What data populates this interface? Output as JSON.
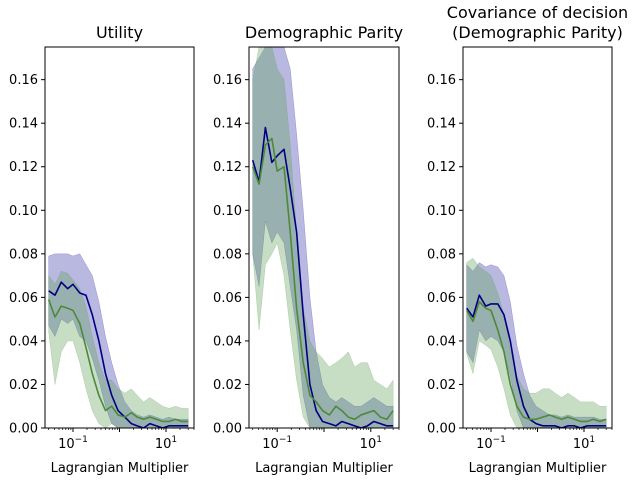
{
  "colors": {
    "series_blue": "#00007f",
    "band_blue": "#3535a8",
    "series_green": "#4c8a3a",
    "band_green": "#5fa055"
  },
  "chart_data": [
    {
      "type": "line",
      "title": "Utility",
      "xlabel": "Lagrangian Multiplier",
      "ylabel": "",
      "xscale": "log",
      "xlim": [
        0.025,
        40
      ],
      "ylim": [
        0,
        0.175
      ],
      "yticks": [
        "0.00",
        "0.02",
        "0.04",
        "0.06",
        "0.08",
        "0.10",
        "0.12",
        "0.14",
        "0.16"
      ],
      "xticks": [
        {
          "label": "10",
          "sup": "-1",
          "value": 0.1
        },
        {
          "label": "10",
          "sup": "1",
          "value": 10
        }
      ],
      "x": [
        0.03,
        0.041,
        0.056,
        0.077,
        0.1,
        0.14,
        0.19,
        0.26,
        0.36,
        0.5,
        0.68,
        0.93,
        1.3,
        1.8,
        2.4,
        3.3,
        4.5,
        6.2,
        8.5,
        11.6,
        16,
        22,
        30
      ],
      "series": [
        {
          "color": "#00007f",
          "band_color": "#3535a8",
          "values": [
            0.063,
            0.061,
            0.067,
            0.064,
            0.066,
            0.062,
            0.061,
            0.052,
            0.04,
            0.025,
            0.015,
            0.008,
            0.005,
            0.002,
            0.001,
            0.0,
            0.002,
            0.001,
            0.0,
            0.001,
            0.001,
            0.001,
            0.001
          ],
          "upper": [
            0.079,
            0.08,
            0.08,
            0.08,
            0.079,
            0.08,
            0.075,
            0.07,
            0.058,
            0.042,
            0.03,
            0.02,
            0.012,
            0.008,
            0.006,
            0.005,
            0.006,
            0.005,
            0.004,
            0.005,
            0.004,
            0.004,
            0.004
          ],
          "lower": [
            0.047,
            0.042,
            0.05,
            0.048,
            0.05,
            0.042,
            0.04,
            0.032,
            0.022,
            0.01,
            0.002,
            0.0,
            0.0,
            0.0,
            0.0,
            0.0,
            0.0,
            0.0,
            0.0,
            0.0,
            0.0,
            0.0,
            0.0
          ]
        },
        {
          "color": "#4c8a3a",
          "band_color": "#5fa055",
          "values": [
            0.059,
            0.051,
            0.056,
            0.055,
            0.054,
            0.048,
            0.037,
            0.025,
            0.015,
            0.008,
            0.01,
            0.006,
            0.005,
            0.007,
            0.005,
            0.004,
            0.005,
            0.004,
            0.003,
            0.003,
            0.004,
            0.003,
            0.003
          ],
          "upper": [
            0.07,
            0.066,
            0.072,
            0.071,
            0.068,
            0.064,
            0.056,
            0.042,
            0.03,
            0.022,
            0.022,
            0.018,
            0.016,
            0.018,
            0.015,
            0.012,
            0.014,
            0.012,
            0.01,
            0.009,
            0.01,
            0.009,
            0.009
          ],
          "lower": [
            0.044,
            0.02,
            0.035,
            0.04,
            0.04,
            0.03,
            0.018,
            0.008,
            0.002,
            0.0,
            0.002,
            0.0,
            0.0,
            0.0,
            0.0,
            0.0,
            0.0,
            0.0,
            0.0,
            0.0,
            0.0,
            0.0,
            0.0
          ]
        }
      ]
    },
    {
      "type": "line",
      "title": "Demographic Parity",
      "xlabel": "Lagrangian Multiplier",
      "ylabel": "",
      "xscale": "log",
      "xlim": [
        0.025,
        40
      ],
      "ylim": [
        0,
        0.175
      ],
      "yticks": [
        "0.00",
        "0.02",
        "0.04",
        "0.06",
        "0.08",
        "0.10",
        "0.12",
        "0.14",
        "0.16"
      ],
      "xticks": [
        {
          "label": "10",
          "sup": "-1",
          "value": 0.1
        },
        {
          "label": "10",
          "sup": "1",
          "value": 10
        }
      ],
      "x": [
        0.03,
        0.041,
        0.056,
        0.077,
        0.1,
        0.14,
        0.19,
        0.26,
        0.36,
        0.5,
        0.68,
        0.93,
        1.3,
        1.8,
        2.4,
        3.3,
        4.5,
        6.2,
        8.5,
        11.6,
        16,
        22,
        30
      ],
      "series": [
        {
          "color": "#00007f",
          "band_color": "#3535a8",
          "values": [
            0.123,
            0.113,
            0.138,
            0.122,
            0.125,
            0.128,
            0.11,
            0.09,
            0.052,
            0.02,
            0.008,
            0.003,
            0.002,
            0.001,
            0.003,
            0.002,
            0.001,
            0.0,
            0.001,
            0.003,
            0.002,
            0.001,
            0.001
          ],
          "upper": [
            0.165,
            0.17,
            0.175,
            0.175,
            0.175,
            0.175,
            0.165,
            0.135,
            0.1,
            0.06,
            0.035,
            0.02,
            0.014,
            0.012,
            0.014,
            0.012,
            0.01,
            0.01,
            0.012,
            0.014,
            0.012,
            0.01,
            0.01
          ],
          "lower": [
            0.08,
            0.065,
            0.095,
            0.085,
            0.09,
            0.085,
            0.065,
            0.045,
            0.015,
            0.0,
            0.0,
            0.0,
            0.0,
            0.0,
            0.0,
            0.0,
            0.0,
            0.0,
            0.0,
            0.0,
            0.0,
            0.0,
            0.0
          ]
        },
        {
          "color": "#4c8a3a",
          "band_color": "#5fa055",
          "values": [
            0.12,
            0.112,
            0.13,
            0.133,
            0.118,
            0.12,
            0.09,
            0.055,
            0.03,
            0.015,
            0.012,
            0.008,
            0.006,
            0.01,
            0.008,
            0.005,
            0.004,
            0.006,
            0.007,
            0.008,
            0.005,
            0.004,
            0.008
          ],
          "upper": [
            0.16,
            0.175,
            0.175,
            0.175,
            0.165,
            0.16,
            0.13,
            0.09,
            0.055,
            0.04,
            0.035,
            0.032,
            0.028,
            0.03,
            0.032,
            0.035,
            0.028,
            0.03,
            0.03,
            0.022,
            0.02,
            0.018,
            0.022
          ],
          "lower": [
            0.08,
            0.045,
            0.075,
            0.08,
            0.085,
            0.07,
            0.045,
            0.022,
            0.005,
            0.0,
            0.0,
            0.0,
            0.0,
            0.0,
            0.0,
            0.0,
            0.0,
            0.0,
            0.0,
            0.0,
            0.0,
            0.0,
            0.0
          ]
        }
      ]
    },
    {
      "type": "line",
      "title": "Covariance of decision\n(Demographic Parity)",
      "xlabel": "Lagrangian Multiplier",
      "ylabel": "",
      "xscale": "log",
      "xlim": [
        0.025,
        40
      ],
      "ylim": [
        0,
        0.175
      ],
      "yticks": [
        "0.00",
        "0.02",
        "0.04",
        "0.06",
        "0.08",
        "0.10",
        "0.12",
        "0.14",
        "0.16"
      ],
      "xticks": [
        {
          "label": "10",
          "sup": "-1",
          "value": 0.1
        },
        {
          "label": "10",
          "sup": "1",
          "value": 10
        }
      ],
      "x": [
        0.03,
        0.041,
        0.056,
        0.077,
        0.1,
        0.14,
        0.19,
        0.26,
        0.36,
        0.5,
        0.68,
        0.93,
        1.3,
        1.8,
        2.4,
        3.3,
        4.5,
        6.2,
        8.5,
        11.6,
        16,
        22,
        30
      ],
      "series": [
        {
          "color": "#00007f",
          "band_color": "#3535a8",
          "values": [
            0.055,
            0.051,
            0.061,
            0.056,
            0.057,
            0.057,
            0.052,
            0.04,
            0.022,
            0.01,
            0.004,
            0.002,
            0.001,
            0.001,
            0.001,
            0.0,
            0.001,
            0.001,
            0.0,
            0.001,
            0.001,
            0.001,
            0.001
          ],
          "upper": [
            0.075,
            0.072,
            0.076,
            0.074,
            0.075,
            0.074,
            0.07,
            0.058,
            0.038,
            0.025,
            0.015,
            0.01,
            0.008,
            0.006,
            0.006,
            0.005,
            0.006,
            0.005,
            0.005,
            0.005,
            0.005,
            0.004,
            0.004
          ],
          "lower": [
            0.035,
            0.03,
            0.045,
            0.04,
            0.042,
            0.04,
            0.035,
            0.024,
            0.008,
            0.0,
            0.0,
            0.0,
            0.0,
            0.0,
            0.0,
            0.0,
            0.0,
            0.0,
            0.0,
            0.0,
            0.0,
            0.0,
            0.0
          ]
        },
        {
          "color": "#4c8a3a",
          "band_color": "#5fa055",
          "values": [
            0.054,
            0.049,
            0.058,
            0.055,
            0.054,
            0.045,
            0.035,
            0.02,
            0.01,
            0.005,
            0.004,
            0.004,
            0.005,
            0.006,
            0.005,
            0.004,
            0.005,
            0.004,
            0.003,
            0.003,
            0.004,
            0.003,
            0.004
          ],
          "upper": [
            0.076,
            0.078,
            0.074,
            0.072,
            0.07,
            0.062,
            0.052,
            0.036,
            0.024,
            0.018,
            0.016,
            0.016,
            0.018,
            0.018,
            0.016,
            0.014,
            0.016,
            0.014,
            0.012,
            0.012,
            0.012,
            0.01,
            0.01
          ],
          "lower": [
            0.034,
            0.025,
            0.04,
            0.038,
            0.036,
            0.028,
            0.018,
            0.006,
            0.0,
            0.0,
            0.0,
            0.0,
            0.0,
            0.0,
            0.0,
            0.0,
            0.0,
            0.0,
            0.0,
            0.0,
            0.0,
            0.0,
            0.0
          ]
        }
      ]
    }
  ]
}
